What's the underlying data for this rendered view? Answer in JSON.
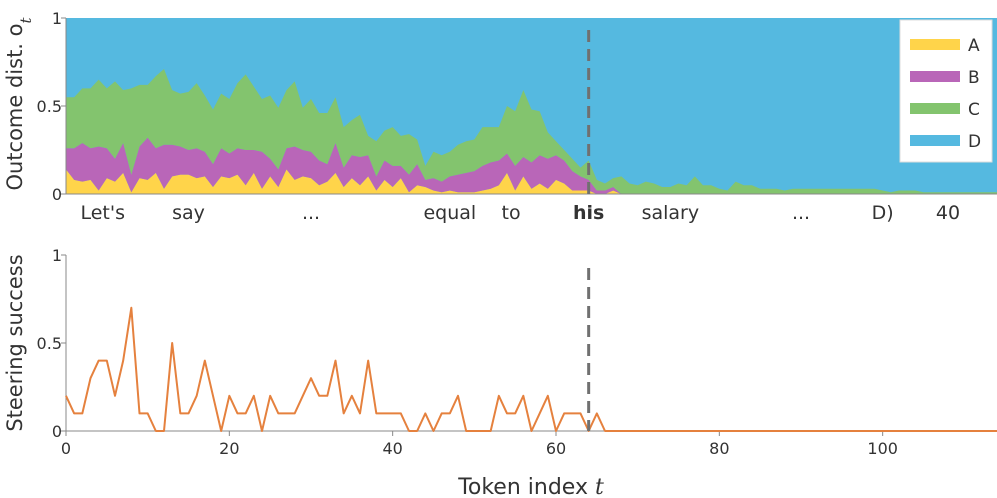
{
  "colors": {
    "A": "#FFD44A",
    "B": "#B966B8",
    "C": "#83C46E",
    "D": "#55B9E0",
    "steering": "#E5813E",
    "marker": "#707070"
  },
  "chart_data": [
    {
      "type": "area",
      "stacked": true,
      "ylabel": "Outcome dist. o",
      "ylabel_subscript": "t",
      "ylim": [
        0,
        1
      ],
      "yticks": [
        0,
        0.5,
        1
      ],
      "yticklabels": [
        "0",
        "0.5",
        "1"
      ],
      "xlim": [
        0,
        114
      ],
      "legend": {
        "position": "top-right",
        "entries": [
          "A",
          "B",
          "C",
          "D"
        ]
      },
      "token_labels": [
        {
          "text": "Let's",
          "x": 4.5,
          "bold": false
        },
        {
          "text": "say",
          "x": 15,
          "bold": false
        },
        {
          "text": "...",
          "x": 30,
          "bold": false
        },
        {
          "text": "equal",
          "x": 47,
          "bold": false
        },
        {
          "text": "to",
          "x": 54.5,
          "bold": false
        },
        {
          "text": "his",
          "x": 64,
          "bold": true
        },
        {
          "text": "salary",
          "x": 74,
          "bold": false
        },
        {
          "text": "...",
          "x": 90,
          "bold": false
        },
        {
          "text": "D)",
          "x": 100,
          "bold": false
        },
        {
          "text": "40",
          "x": 108,
          "bold": false
        }
      ],
      "marker_x": 64,
      "x": [
        0,
        1,
        2,
        3,
        4,
        5,
        6,
        7,
        8,
        9,
        10,
        11,
        12,
        13,
        14,
        15,
        16,
        17,
        18,
        19,
        20,
        21,
        22,
        23,
        24,
        25,
        26,
        27,
        28,
        29,
        30,
        31,
        32,
        33,
        34,
        35,
        36,
        37,
        38,
        39,
        40,
        41,
        42,
        43,
        44,
        45,
        46,
        47,
        48,
        49,
        50,
        51,
        52,
        53,
        54,
        55,
        56,
        57,
        58,
        59,
        60,
        61,
        62,
        63,
        64,
        65,
        66,
        67,
        68,
        69,
        70,
        71,
        72,
        73,
        74,
        75,
        76,
        77,
        78,
        79,
        80,
        81,
        82,
        83,
        84,
        85,
        86,
        87,
        88,
        89,
        90,
        91,
        92,
        93,
        94,
        95,
        96,
        97,
        98,
        99,
        100,
        101,
        102,
        103,
        104,
        105,
        106,
        107,
        108,
        109,
        110,
        111,
        112,
        113,
        114
      ],
      "series": [
        {
          "name": "A",
          "values": [
            0.14,
            0.08,
            0.07,
            0.08,
            0.02,
            0.09,
            0.07,
            0.12,
            0.01,
            0.09,
            0.08,
            0.12,
            0.03,
            0.1,
            0.11,
            0.11,
            0.09,
            0.1,
            0.04,
            0.1,
            0.09,
            0.11,
            0.05,
            0.12,
            0.03,
            0.1,
            0.04,
            0.14,
            0.08,
            0.1,
            0.09,
            0.05,
            0.07,
            0.12,
            0.04,
            0.09,
            0.05,
            0.1,
            0.02,
            0.08,
            0.04,
            0.09,
            0.01,
            0.05,
            0.04,
            0.02,
            0.01,
            0.02,
            0.01,
            0.01,
            0.01,
            0.02,
            0.03,
            0.05,
            0.12,
            0.02,
            0.1,
            0.03,
            0.06,
            0.03,
            0.08,
            0.06,
            0.02,
            0.02,
            0.02,
            0.0,
            0.0,
            0.02,
            0.0,
            0.0,
            0.0,
            0.0,
            0.0,
            0.0,
            0.0,
            0.0,
            0.0,
            0.0,
            0.0,
            0.0,
            0.0,
            0.0,
            0.0,
            0.0,
            0.0,
            0.0,
            0.0,
            0.0,
            0.0,
            0.0,
            0.0,
            0.0,
            0.0,
            0.0,
            0.0,
            0.0,
            0.0,
            0.0,
            0.0,
            0.0,
            0.0,
            0.0,
            0.0,
            0.0,
            0.0,
            0.0,
            0.0,
            0.0,
            0.0,
            0.0,
            0.0,
            0.0,
            0.0,
            0.0,
            0.0
          ]
        },
        {
          "name": "B",
          "values": [
            0.12,
            0.18,
            0.22,
            0.18,
            0.25,
            0.17,
            0.13,
            0.17,
            0.1,
            0.18,
            0.24,
            0.14,
            0.25,
            0.18,
            0.16,
            0.14,
            0.17,
            0.14,
            0.13,
            0.16,
            0.14,
            0.15,
            0.2,
            0.13,
            0.21,
            0.1,
            0.1,
            0.12,
            0.19,
            0.15,
            0.15,
            0.14,
            0.1,
            0.17,
            0.11,
            0.13,
            0.16,
            0.12,
            0.08,
            0.11,
            0.12,
            0.07,
            0.1,
            0.12,
            0.04,
            0.07,
            0.06,
            0.08,
            0.1,
            0.11,
            0.12,
            0.14,
            0.15,
            0.14,
            0.11,
            0.14,
            0.11,
            0.15,
            0.16,
            0.17,
            0.14,
            0.13,
            0.11,
            0.08,
            0.06,
            0.02,
            0.02,
            0.02,
            0.0,
            0.0,
            0.0,
            0.0,
            0.0,
            0.0,
            0.0,
            0.0,
            0.0,
            0.0,
            0.0,
            0.0,
            0.0,
            0.0,
            0.0,
            0.0,
            0.0,
            0.0,
            0.0,
            0.0,
            0.0,
            0.0,
            0.0,
            0.0,
            0.0,
            0.0,
            0.0,
            0.0,
            0.0,
            0.0,
            0.0,
            0.0,
            0.0,
            0.0,
            0.0,
            0.0,
            0.0,
            0.0,
            0.0,
            0.0,
            0.0,
            0.0,
            0.0,
            0.0,
            0.0,
            0.0,
            0.0
          ]
        },
        {
          "name": "C",
          "values": [
            0.29,
            0.29,
            0.31,
            0.34,
            0.38,
            0.34,
            0.44,
            0.3,
            0.49,
            0.35,
            0.3,
            0.41,
            0.43,
            0.31,
            0.3,
            0.33,
            0.37,
            0.32,
            0.31,
            0.31,
            0.31,
            0.37,
            0.43,
            0.36,
            0.3,
            0.36,
            0.35,
            0.33,
            0.37,
            0.24,
            0.3,
            0.27,
            0.29,
            0.26,
            0.23,
            0.2,
            0.24,
            0.11,
            0.2,
            0.17,
            0.22,
            0.17,
            0.23,
            0.14,
            0.08,
            0.15,
            0.15,
            0.14,
            0.17,
            0.18,
            0.18,
            0.22,
            0.2,
            0.19,
            0.27,
            0.31,
            0.38,
            0.3,
            0.25,
            0.15,
            0.08,
            0.06,
            0.07,
            0.05,
            0.11,
            0.06,
            0.04,
            0.05,
            0.1,
            0.06,
            0.05,
            0.07,
            0.06,
            0.04,
            0.04,
            0.06,
            0.05,
            0.1,
            0.05,
            0.05,
            0.03,
            0.02,
            0.07,
            0.05,
            0.05,
            0.03,
            0.03,
            0.03,
            0.02,
            0.03,
            0.03,
            0.03,
            0.03,
            0.03,
            0.03,
            0.03,
            0.03,
            0.03,
            0.03,
            0.03,
            0.02,
            0.01,
            0.02,
            0.02,
            0.02,
            0.01,
            0.01,
            0.01,
            0.01,
            0.01,
            0.01,
            0.01,
            0.01,
            0.01,
            0.01
          ]
        }
      ]
    },
    {
      "type": "line",
      "ylabel": "Steering success",
      "xlabel": "Token index",
      "xlabel_italic": "t",
      "ylim": [
        0,
        1
      ],
      "yticks": [
        0,
        0.5,
        1
      ],
      "yticklabels": [
        "0",
        "0.5",
        "1"
      ],
      "xlim": [
        0,
        114
      ],
      "xticks": [
        0,
        20,
        40,
        60,
        80,
        100
      ],
      "xticklabels": [
        "0",
        "20",
        "40",
        "60",
        "80",
        "100"
      ],
      "marker_x": 64,
      "x": [
        0,
        1,
        2,
        3,
        4,
        5,
        6,
        7,
        8,
        9,
        10,
        11,
        12,
        13,
        14,
        15,
        16,
        17,
        18,
        19,
        20,
        21,
        22,
        23,
        24,
        25,
        26,
        27,
        28,
        29,
        30,
        31,
        32,
        33,
        34,
        35,
        36,
        37,
        38,
        39,
        40,
        41,
        42,
        43,
        44,
        45,
        46,
        47,
        48,
        49,
        50,
        51,
        52,
        53,
        54,
        55,
        56,
        57,
        58,
        59,
        60,
        61,
        62,
        63,
        64,
        65,
        66
      ],
      "values": [
        0.2,
        0.1,
        0.1,
        0.3,
        0.4,
        0.4,
        0.2,
        0.4,
        0.7,
        0.1,
        0.1,
        0.0,
        0.0,
        0.5,
        0.1,
        0.1,
        0.2,
        0.4,
        0.2,
        0.0,
        0.2,
        0.1,
        0.1,
        0.2,
        0.0,
        0.2,
        0.1,
        0.1,
        0.1,
        0.2,
        0.3,
        0.2,
        0.2,
        0.4,
        0.1,
        0.2,
        0.1,
        0.4,
        0.1,
        0.1,
        0.1,
        0.1,
        0.0,
        0.0,
        0.1,
        0.0,
        0.1,
        0.1,
        0.2,
        0.0,
        0.0,
        0.0,
        0.0,
        0.2,
        0.1,
        0.1,
        0.2,
        0.0,
        0.1,
        0.2,
        0.0,
        0.1,
        0.1,
        0.1,
        0.0,
        0.1,
        0.0
      ]
    }
  ]
}
